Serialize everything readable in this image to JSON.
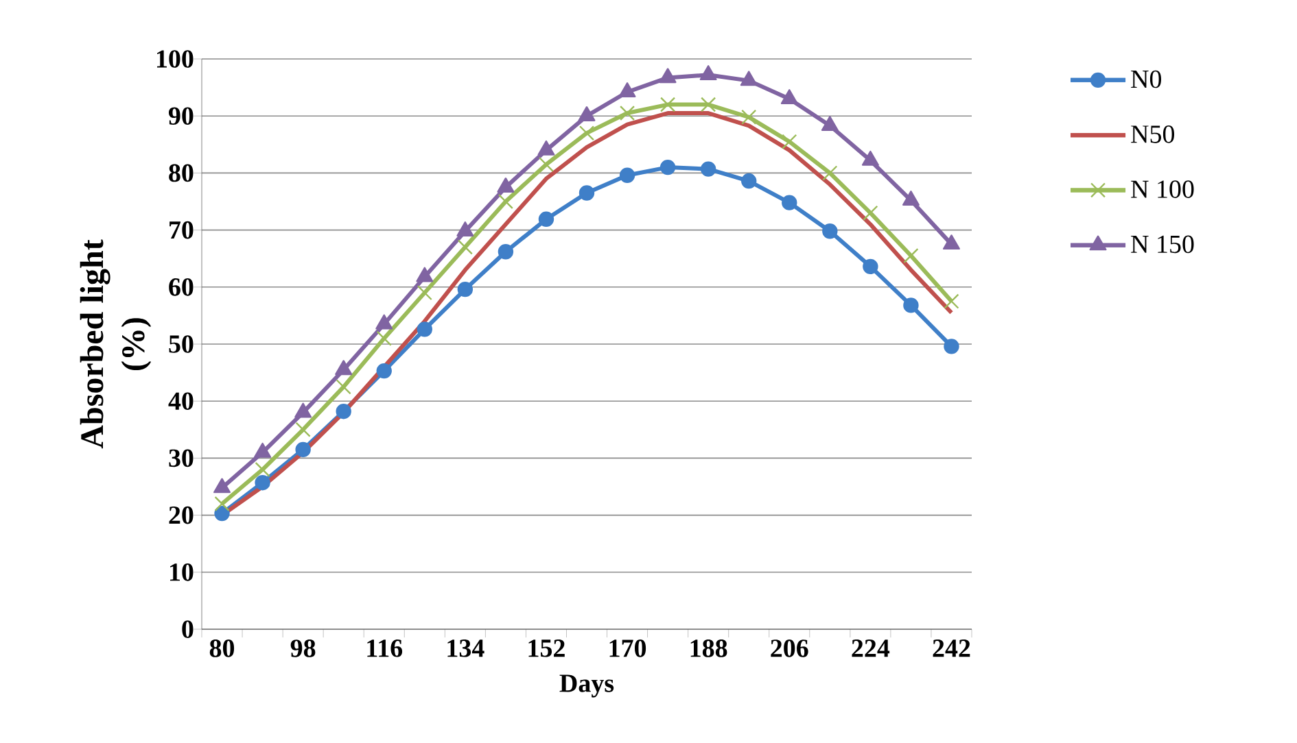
{
  "chart_data": {
    "type": "line",
    "xlabel": "Days",
    "ylabel": "Absorbed light (%)",
    "categories": [
      "80",
      null,
      "98",
      null,
      "116",
      null,
      "134",
      null,
      "152",
      null,
      "170",
      null,
      "188",
      null,
      "206",
      null,
      "224",
      null,
      "242"
    ],
    "series": [
      {
        "name": "N0",
        "color": "#3f7fc8",
        "marker": "circle",
        "values": [
          20.3,
          25.7,
          31.5,
          38.2,
          45.3,
          52.6,
          59.6,
          66.2,
          71.9,
          76.5,
          79.6,
          81.0,
          80.7,
          78.6,
          74.8,
          69.8,
          63.6,
          56.8,
          49.6
        ]
      },
      {
        "name": "N50",
        "color": "#c0504d",
        "marker": "none",
        "values": [
          20.0,
          25.0,
          31.0,
          38.0,
          46.0,
          54.0,
          63.0,
          71.0,
          79.0,
          84.5,
          88.5,
          90.5,
          90.5,
          88.3,
          84.0,
          78.0,
          71.0,
          63.0,
          55.5
        ]
      },
      {
        "name": "N 100",
        "color": "#9bbb59",
        "marker": "cross",
        "values": [
          22.0,
          28.0,
          35.0,
          42.5,
          51.0,
          59.0,
          67.0,
          75.0,
          81.5,
          87.0,
          90.5,
          92.0,
          92.0,
          89.8,
          85.5,
          80.0,
          73.0,
          65.5,
          57.5
        ]
      },
      {
        "name": "N 150",
        "color": "#8064a2",
        "marker": "triangle",
        "values": [
          24.8,
          31.0,
          38.0,
          45.5,
          53.5,
          61.8,
          69.8,
          77.5,
          84.0,
          90.0,
          94.2,
          96.7,
          97.2,
          96.2,
          93.0,
          88.3,
          82.2,
          75.2,
          67.5
        ]
      }
    ],
    "ylim": [
      0,
      100
    ],
    "yticks": [
      0,
      10,
      20,
      30,
      40,
      50,
      60,
      70,
      80,
      90,
      100
    ],
    "grid": "y",
    "legend": "right",
    "line_style": "solid"
  }
}
